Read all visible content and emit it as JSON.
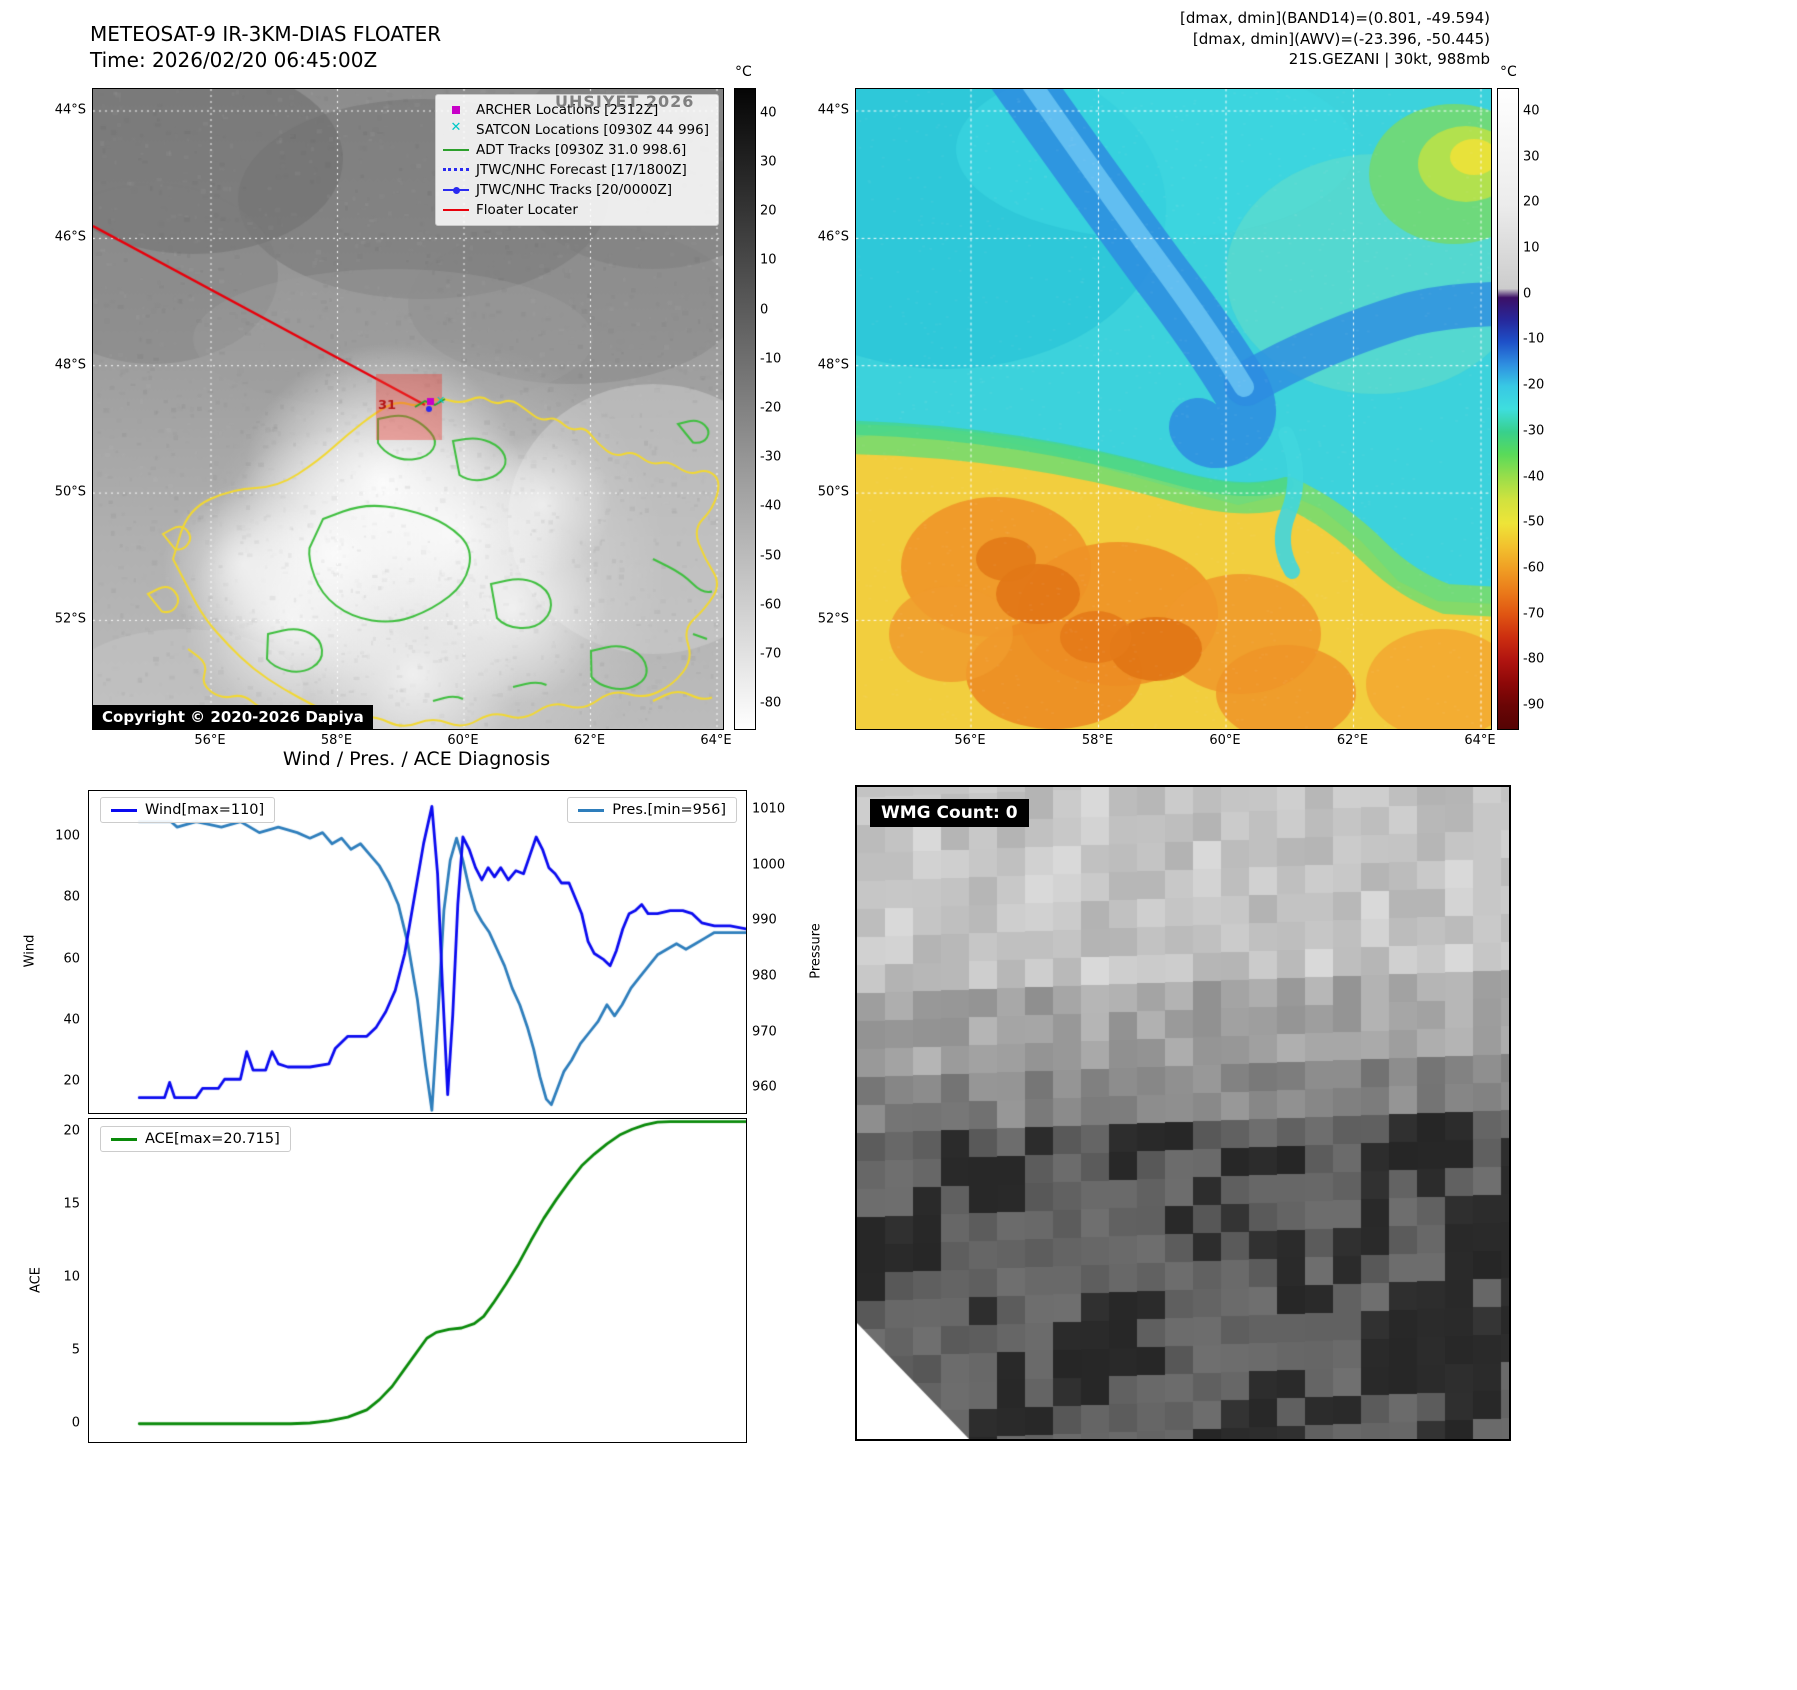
{
  "colors": {
    "wind_line": "#0a0af0",
    "pres_line": "#2e7ebc",
    "ace_line": "#0a8a0a",
    "floater_line": "#e8000b",
    "archer_marker": "#c800c8",
    "satcon_marker": "#00c8c8",
    "adt_track": "#2ca02c",
    "jtwc_blue": "#2a2af0"
  },
  "ir_panel": {
    "title": "METEOSAT-9 IR-3KM-DIAS FLOATER",
    "time_line": "Time: 2026/02/20 06:45:00Z",
    "copyright": "Copyright © 2020-2026 Dapiya",
    "watermark": "UHSIYET 2026",
    "floater_box_label": "31",
    "legend": [
      {
        "type": "square",
        "color": "#c800c8",
        "label": "ARCHER Locations [2312Z]"
      },
      {
        "type": "x",
        "color": "#00c8c8",
        "label": "SATCON Locations [0930Z 44 996]"
      },
      {
        "type": "line",
        "color": "#2ca02c",
        "label": "ADT Tracks [0930Z 31.0 998.6]"
      },
      {
        "type": "dotted",
        "color": "#2a2af0",
        "label": "JTWC/NHC Forecast [17/1800Z]"
      },
      {
        "type": "linedot",
        "color": "#2a2af0",
        "label": "JTWC/NHC Tracks [20/0000Z]"
      },
      {
        "type": "line",
        "color": "#e8000b",
        "label": "Floater Locater"
      }
    ],
    "lat_ticks": [
      "44°S",
      "46°S",
      "48°S",
      "50°S",
      "52°S"
    ],
    "lon_ticks": [
      "56°E",
      "58°E",
      "60°E",
      "62°E",
      "64°E"
    ],
    "colorbar": {
      "unit": "°C",
      "ticks": [
        40,
        30,
        20,
        10,
        0,
        -10,
        -20,
        -30,
        -40,
        -50,
        -60,
        -70,
        -80
      ]
    }
  },
  "enhanced_panel": {
    "info_lines": [
      "[dmax, dmin](BAND14)=(0.801, -49.594)",
      "[dmax, dmin](AWV)=(-23.396, -50.445)",
      "21S.GEZANI | 30kt, 988mb"
    ],
    "lat_ticks": [
      "44°S",
      "46°S",
      "48°S",
      "50°S",
      "52°S"
    ],
    "lon_ticks": [
      "56°E",
      "58°E",
      "60°E",
      "62°E",
      "64°E"
    ],
    "colorbar": {
      "unit": "°C",
      "ticks": [
        40,
        30,
        20,
        10,
        0,
        -10,
        -20,
        -30,
        -40,
        -50,
        -60,
        -70,
        -80,
        -90
      ]
    }
  },
  "diagnosis": {
    "title": "Wind / Pres. / ACE Diagnosis",
    "wind_legend": "Wind[max=110]",
    "pres_legend": "Pres.[min=956]",
    "ace_legend": "ACE[max=20.715]",
    "wind_axis_label": "Wind",
    "pres_axis_label": "Pressure",
    "ace_axis_label": "ACE",
    "wind_ticks": [
      20,
      40,
      60,
      80,
      100
    ],
    "pres_ticks": [
      960,
      970,
      980,
      990,
      1000,
      1010
    ],
    "ace_ticks": [
      0,
      5,
      10,
      15,
      20
    ]
  },
  "wmg_panel": {
    "count_label": "WMG Count: 0"
  },
  "chart_data": [
    {
      "type": "line",
      "title": "Wind / Pres. / ACE Diagnosis",
      "x_range": [
        0,
        100
      ],
      "ylabel_left": "Wind",
      "ylabel_right": "Pressure",
      "ylim_left": [
        10,
        115
      ],
      "ylim_right": [
        955.5,
        1013.5
      ],
      "legend_position": "top-left / top-right",
      "series": [
        {
          "name": "Wind[max=110]",
          "axis": "left",
          "color": "#0a0af0",
          "points": [
            [
              4,
              15
            ],
            [
              8,
              15
            ],
            [
              8.8,
              20
            ],
            [
              9.6,
              15
            ],
            [
              13,
              15
            ],
            [
              14,
              18
            ],
            [
              16.5,
              18
            ],
            [
              17.5,
              21
            ],
            [
              20,
              21
            ],
            [
              21,
              30
            ],
            [
              22,
              24
            ],
            [
              24,
              24
            ],
            [
              25,
              30
            ],
            [
              26,
              26
            ],
            [
              27.5,
              25
            ],
            [
              31,
              25
            ],
            [
              34,
              26
            ],
            [
              35,
              31
            ],
            [
              37,
              35
            ],
            [
              40,
              35
            ],
            [
              41.5,
              38
            ],
            [
              43,
              43
            ],
            [
              44.5,
              50
            ],
            [
              46,
              62
            ],
            [
              47.5,
              80
            ],
            [
              49,
              98
            ],
            [
              50.3,
              110
            ],
            [
              51.2,
              88
            ],
            [
              52,
              50
            ],
            [
              52.8,
              16
            ],
            [
              53.6,
              42
            ],
            [
              54.4,
              78
            ],
            [
              55.2,
              100
            ],
            [
              56.2,
              96
            ],
            [
              57.2,
              90
            ],
            [
              58.2,
              86
            ],
            [
              59.2,
              90
            ],
            [
              60.2,
              87
            ],
            [
              61.2,
              90
            ],
            [
              62.4,
              86
            ],
            [
              63.6,
              89
            ],
            [
              64.8,
              88
            ],
            [
              65.8,
              94
            ],
            [
              66.8,
              100
            ],
            [
              67.8,
              96
            ],
            [
              68.8,
              90
            ],
            [
              69.8,
              88
            ],
            [
              70.8,
              85
            ],
            [
              72,
              85
            ],
            [
              73,
              80
            ],
            [
              74,
              75
            ],
            [
              75,
              66
            ],
            [
              76,
              62
            ],
            [
              77.5,
              60
            ],
            [
              78.5,
              58
            ],
            [
              79.5,
              63
            ],
            [
              80.5,
              70
            ],
            [
              81.5,
              75
            ],
            [
              82.5,
              76
            ],
            [
              83.5,
              78
            ],
            [
              84.5,
              75
            ],
            [
              86,
              75
            ],
            [
              88,
              76
            ],
            [
              90,
              76
            ],
            [
              91.5,
              75
            ],
            [
              93,
              72
            ],
            [
              95,
              71
            ],
            [
              97.5,
              71
            ],
            [
              100,
              70
            ]
          ]
        },
        {
          "name": "Pres.[min=956]",
          "axis": "right",
          "color": "#2e7ebc",
          "points": [
            [
              4,
              1008
            ],
            [
              9,
              1008
            ],
            [
              10,
              1007
            ],
            [
              13,
              1008
            ],
            [
              17,
              1007
            ],
            [
              20,
              1008
            ],
            [
              23,
              1006
            ],
            [
              26,
              1007
            ],
            [
              29,
              1006
            ],
            [
              31,
              1005
            ],
            [
              33,
              1006
            ],
            [
              34.5,
              1004
            ],
            [
              36,
              1005
            ],
            [
              37.5,
              1003
            ],
            [
              39,
              1004
            ],
            [
              40.5,
              1002
            ],
            [
              42,
              1000
            ],
            [
              43.5,
              997
            ],
            [
              45,
              993
            ],
            [
              46.5,
              986
            ],
            [
              48,
              976
            ],
            [
              49.3,
              964
            ],
            [
              50.3,
              956
            ],
            [
              51.3,
              974
            ],
            [
              52.2,
              992
            ],
            [
              53.2,
              1001
            ],
            [
              54.2,
              1005
            ],
            [
              55.2,
              1001
            ],
            [
              56.2,
              996
            ],
            [
              57.2,
              992
            ],
            [
              58.2,
              990
            ],
            [
              59.4,
              988
            ],
            [
              60.6,
              985
            ],
            [
              61.8,
              982
            ],
            [
              63,
              978
            ],
            [
              64.2,
              975
            ],
            [
              65.4,
              971
            ],
            [
              66.4,
              967
            ],
            [
              67.4,
              962
            ],
            [
              68.4,
              958
            ],
            [
              69.2,
              957
            ],
            [
              70.2,
              960
            ],
            [
              71.2,
              963
            ],
            [
              72.4,
              965
            ],
            [
              73.8,
              968
            ],
            [
              75.2,
              970
            ],
            [
              76.6,
              972
            ],
            [
              78,
              975
            ],
            [
              79.2,
              973
            ],
            [
              80.4,
              975
            ],
            [
              81.8,
              978
            ],
            [
              83.2,
              980
            ],
            [
              84.6,
              982
            ],
            [
              86,
              984
            ],
            [
              87.5,
              985
            ],
            [
              89,
              986
            ],
            [
              90.5,
              985
            ],
            [
              92,
              986
            ],
            [
              93.5,
              987
            ],
            [
              95,
              988
            ],
            [
              97.5,
              988
            ],
            [
              100,
              988
            ]
          ]
        }
      ]
    },
    {
      "type": "line",
      "x_range": [
        0,
        100
      ],
      "ylabel": "ACE",
      "ylim": [
        -1.2,
        20.9
      ],
      "series": [
        {
          "name": "ACE[max=20.715]",
          "color": "#0a8a0a",
          "points": [
            [
              4,
              0.05
            ],
            [
              28,
              0.05
            ],
            [
              31,
              0.1
            ],
            [
              34,
              0.25
            ],
            [
              37,
              0.5
            ],
            [
              40,
              1.0
            ],
            [
              42,
              1.7
            ],
            [
              44,
              2.6
            ],
            [
              46,
              3.8
            ],
            [
              48,
              5.0
            ],
            [
              49.5,
              5.9
            ],
            [
              51,
              6.3
            ],
            [
              53,
              6.5
            ],
            [
              55,
              6.6
            ],
            [
              57,
              6.9
            ],
            [
              58.5,
              7.4
            ],
            [
              60,
              8.3
            ],
            [
              62,
              9.6
            ],
            [
              64,
              11.0
            ],
            [
              66,
              12.6
            ],
            [
              68,
              14.1
            ],
            [
              70,
              15.4
            ],
            [
              72,
              16.6
            ],
            [
              74,
              17.7
            ],
            [
              76,
              18.5
            ],
            [
              78,
              19.2
            ],
            [
              80,
              19.8
            ],
            [
              82,
              20.2
            ],
            [
              84,
              20.5
            ],
            [
              86,
              20.68
            ],
            [
              88,
              20.715
            ],
            [
              100,
              20.715
            ]
          ]
        }
      ]
    }
  ]
}
